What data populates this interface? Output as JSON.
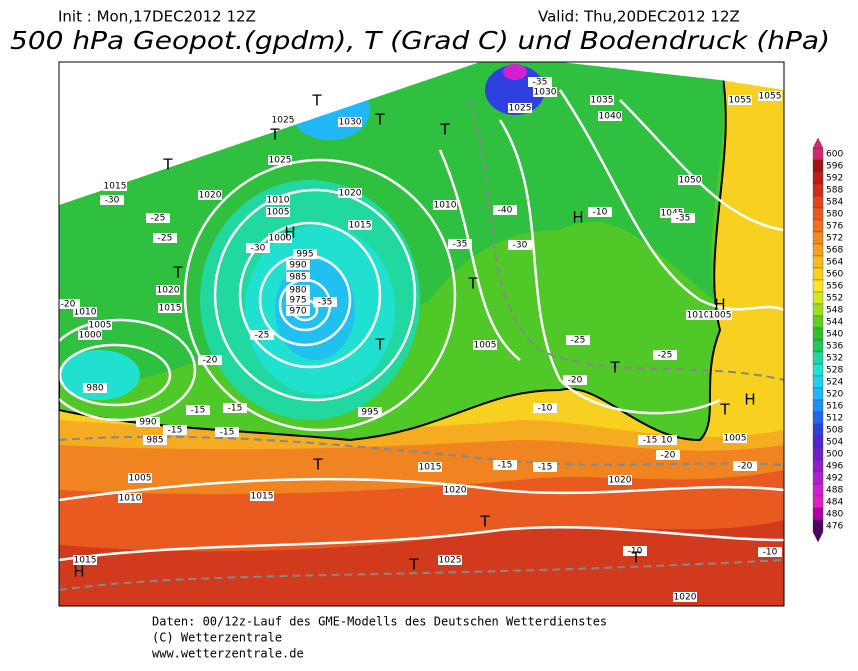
{
  "header": {
    "init": "Init : Mon,17DEC2012 12Z",
    "valid": "Valid: Thu,20DEC2012 12Z",
    "title": "500 hPa Geopot.(gpdm), T (Grad C) und Bodendruck (hPa)"
  },
  "scale": {
    "values": [
      600,
      596,
      592,
      588,
      584,
      580,
      576,
      572,
      568,
      564,
      560,
      556,
      552,
      548,
      544,
      540,
      536,
      532,
      528,
      524,
      520,
      516,
      512,
      508,
      504,
      500,
      496,
      492,
      488,
      484,
      480,
      476
    ],
    "colors": [
      "#d4286e",
      "#a01414",
      "#c01c1c",
      "#d82a1c",
      "#e24420",
      "#e85a20",
      "#ee7020",
      "#f28a20",
      "#f6a020",
      "#f8b820",
      "#fad020",
      "#fae61e",
      "#d0e81e",
      "#a0dc20",
      "#60d020",
      "#30c030",
      "#20c860",
      "#20d8a0",
      "#20e0d0",
      "#20d0f0",
      "#20b8f8",
      "#2090f8",
      "#2068f0",
      "#3040e0",
      "#5028d0",
      "#7020c8",
      "#9020c8",
      "#b020d0",
      "#d020d0",
      "#e020c0",
      "#b000a0",
      "#500060"
    ]
  },
  "map": {
    "labels": [
      "1015",
      "1020",
      "1025",
      "1030",
      "1025",
      "1030",
      "1035",
      "1040",
      "1045",
      "1050",
      "1055",
      "1055",
      "1010",
      "1005",
      "1000",
      "995",
      "990",
      "985",
      "980",
      "975",
      "970",
      "1000",
      "1005",
      "1010",
      "1015",
      "1020",
      "1025",
      "1015",
      "1020",
      "1010",
      "1005",
      "995",
      "990",
      "985",
      "980",
      "1005",
      "1010",
      "1015",
      "1020",
      "1015",
      "1020",
      "1025",
      "1015",
      "1020",
      "1005",
      "1010",
      "1005",
      "-30",
      "-25",
      "-25",
      "-30",
      "-35",
      "-35",
      "-40",
      "-35",
      "-30",
      "-25",
      "-20",
      "-20",
      "-15",
      "-15",
      "-15",
      "-10",
      "-15",
      "-15",
      "-10",
      "-10",
      "-20",
      "-25",
      "-20",
      "-15",
      "-10",
      "-35",
      "-25",
      "-20",
      "-15",
      "-10",
      "T",
      "T",
      "T",
      "T",
      "T",
      "T",
      "T",
      "T",
      "T",
      "T",
      "T",
      "T",
      "T",
      "T",
      "H",
      "H",
      "H",
      "H",
      "H"
    ]
  },
  "footer": {
    "line1": "Daten: 00/12z-Lauf des GME-Modells des Deutschen Wetterdienstes",
    "line2": "(C) Wetterzentrale",
    "line3": "www.wetterzentrale.de"
  }
}
